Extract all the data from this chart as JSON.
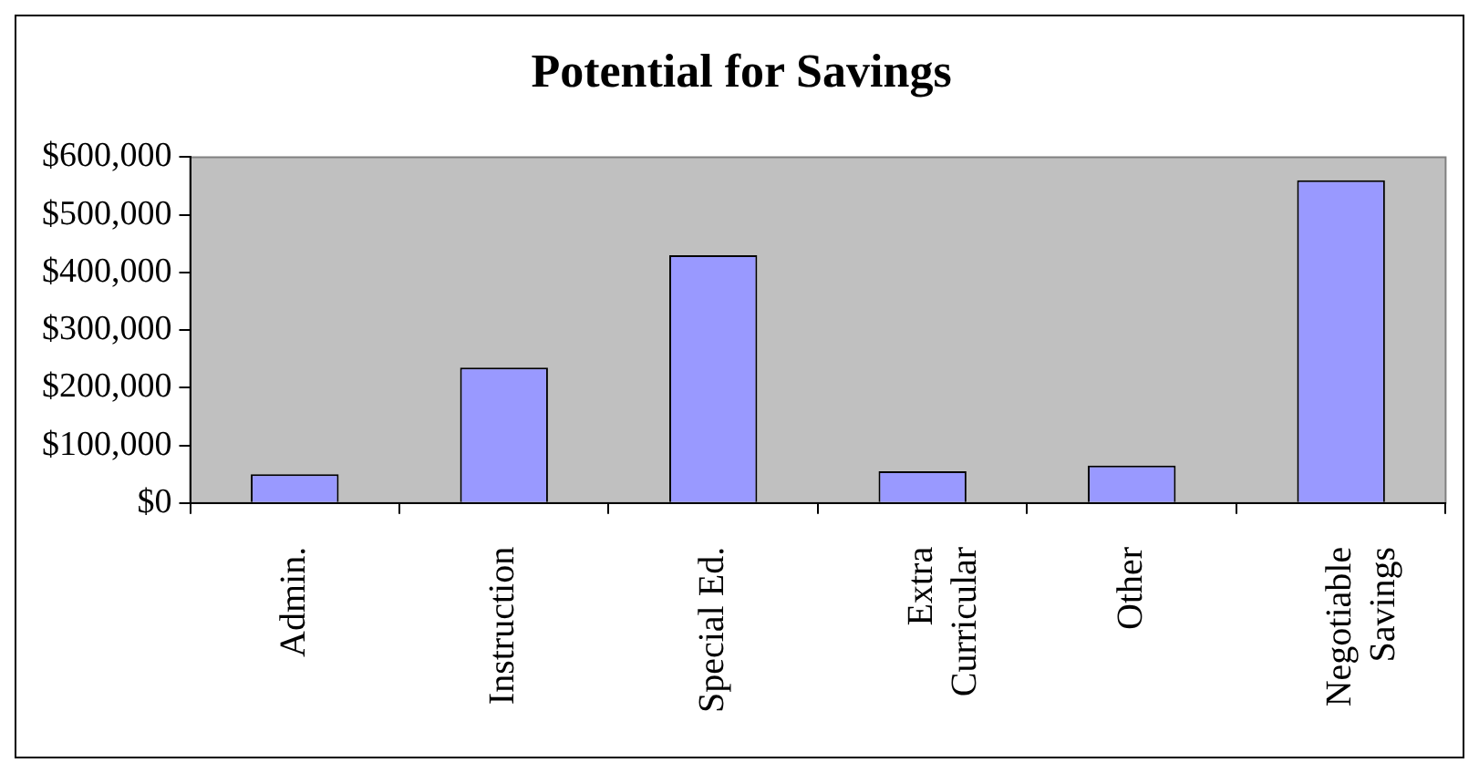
{
  "chart_data": {
    "type": "bar",
    "title": "Potential for Savings",
    "categories": [
      "Admin.",
      "Instruction",
      "Special Ed.",
      "Extra Curricular",
      "Other",
      "Negotiable Savings"
    ],
    "values": [
      50000,
      235000,
      430000,
      55000,
      65000,
      560000
    ],
    "color": "#9999ff",
    "ylim": [
      0,
      600000
    ],
    "yticks": [
      {
        "value": 0,
        "label": "$0"
      },
      {
        "value": 100000,
        "label": "$100,000"
      },
      {
        "value": 200000,
        "label": "$200,000"
      },
      {
        "value": 300000,
        "label": "$300,000"
      },
      {
        "value": 400000,
        "label": "$400,000"
      },
      {
        "value": 500000,
        "label": "$500,000"
      },
      {
        "value": 600000,
        "label": "$600,000"
      }
    ],
    "grid": false,
    "legend": false
  }
}
